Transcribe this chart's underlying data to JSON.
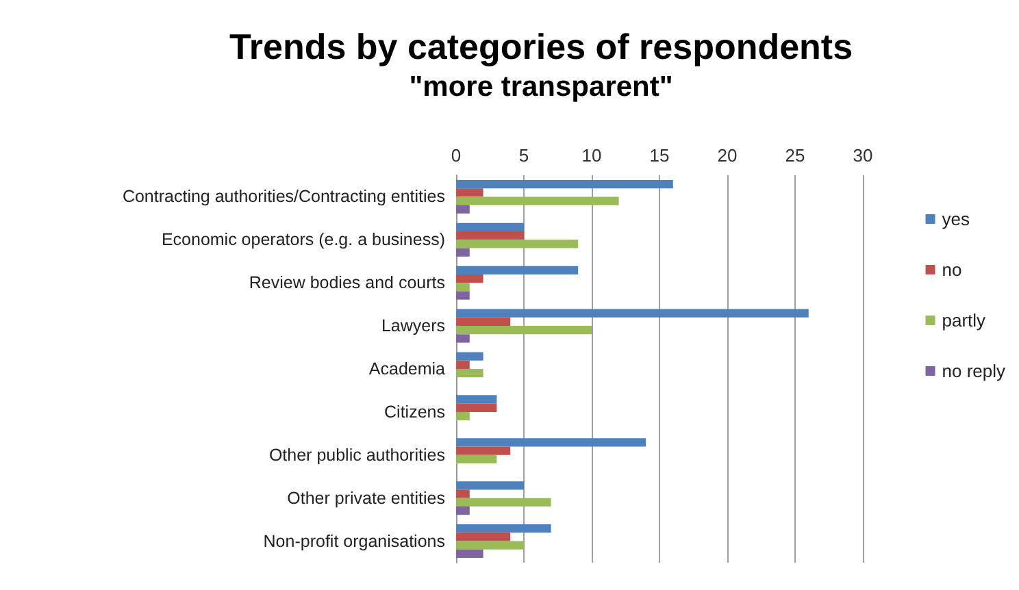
{
  "chart_data": {
    "type": "bar",
    "orientation": "horizontal",
    "title": "Trends by categories of respondents",
    "subtitle": "\"more transparent\"",
    "categories": [
      "Contracting authorities/Contracting entities",
      "Economic operators (e.g. a business)",
      "Review bodies and courts",
      "Lawyers",
      "Academia",
      "Citizens",
      "Other public authorities",
      "Other private entities",
      "Non-profit organisations"
    ],
    "series": [
      {
        "name": "yes",
        "color": "#4f81bd",
        "values": [
          16,
          5,
          9,
          26,
          2,
          3,
          14,
          5,
          7
        ]
      },
      {
        "name": "no",
        "color": "#c0504d",
        "values": [
          2,
          5,
          2,
          4,
          1,
          3,
          4,
          1,
          4
        ]
      },
      {
        "name": "partly",
        "color": "#9bbb59",
        "values": [
          12,
          9,
          1,
          10,
          2,
          1,
          3,
          7,
          5
        ]
      },
      {
        "name": "no reply",
        "color": "#8064a2",
        "values": [
          1,
          1,
          1,
          1,
          0,
          0,
          0,
          1,
          2
        ]
      }
    ],
    "xlim": [
      0,
      30
    ],
    "xticks": [
      0,
      5,
      10,
      15,
      20,
      25,
      30
    ],
    "grid": "x",
    "legend": "right"
  }
}
